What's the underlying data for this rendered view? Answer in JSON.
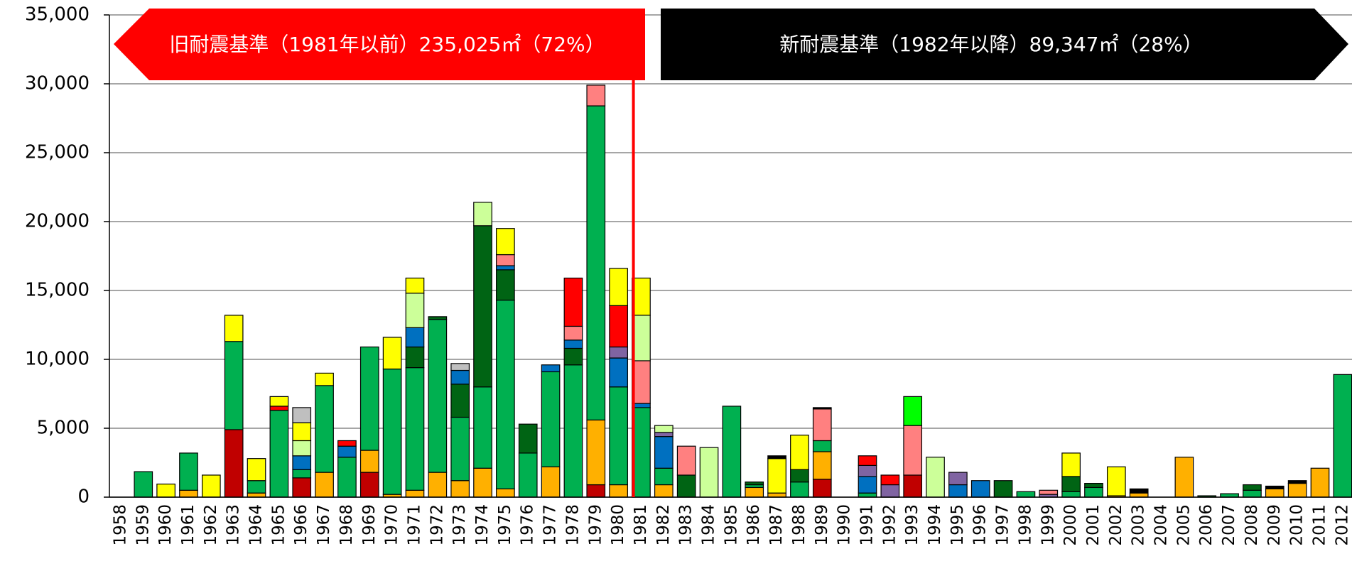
{
  "chart_data": {
    "type": "stacked_bar",
    "categories": [
      "1958",
      "1959",
      "1960",
      "1961",
      "1962",
      "1963",
      "1964",
      "1965",
      "1966",
      "1967",
      "1968",
      "1969",
      "1970",
      "1971",
      "1972",
      "1973",
      "1974",
      "1975",
      "1976",
      "1977",
      "1978",
      "1979",
      "1980",
      "1981",
      "1982",
      "1983",
      "1984",
      "1985",
      "1986",
      "1987",
      "1988",
      "1989",
      "1990",
      "1991",
      "1992",
      "1993",
      "1994",
      "1995",
      "1996",
      "1997",
      "1998",
      "1999",
      "2000",
      "2001",
      "2002",
      "2003",
      "2004",
      "2005",
      "2006",
      "2007",
      "2008",
      "2009",
      "2010",
      "2011",
      "2012"
    ],
    "series": [
      {
        "color": "#c00000",
        "values": [
          0,
          0,
          0,
          0,
          0,
          4900,
          0,
          0,
          1400,
          0,
          0,
          1800,
          0,
          0,
          0,
          0,
          0,
          0,
          0,
          0,
          0,
          900,
          0,
          0,
          0,
          0,
          0,
          0,
          0,
          0,
          0,
          1300,
          0,
          0,
          0,
          1600,
          0,
          0,
          0,
          0,
          0,
          0,
          0,
          0,
          0,
          0,
          0,
          0,
          0,
          0,
          0,
          0,
          0,
          0,
          0
        ]
      },
      {
        "color": "#ffb000",
        "values": [
          0,
          0,
          0,
          500,
          0,
          0,
          300,
          0,
          0,
          1800,
          0,
          1600,
          200,
          500,
          1800,
          1200,
          2100,
          600,
          0,
          2200,
          0,
          4700,
          900,
          0,
          900,
          0,
          0,
          0,
          700,
          300,
          0,
          2000,
          0,
          0,
          0,
          0,
          0,
          0,
          0,
          0,
          0,
          0,
          0,
          0,
          100,
          300,
          0,
          2900,
          0,
          0,
          0,
          600,
          1000,
          2100,
          0
        ]
      },
      {
        "color": "#00b050",
        "values": [
          0,
          1850,
          0,
          2700,
          0,
          6400,
          900,
          6300,
          600,
          6300,
          2900,
          7500,
          9100,
          8900,
          11100,
          4600,
          5900,
          13700,
          3200,
          6900,
          9600,
          22800,
          7100,
          6500,
          1200,
          0,
          0,
          6600,
          200,
          0,
          1100,
          800,
          0,
          300,
          0,
          0,
          0,
          0,
          0,
          0,
          400,
          0,
          400,
          700,
          0,
          0,
          0,
          0,
          0,
          250,
          500,
          0,
          0,
          0,
          8900
        ]
      },
      {
        "color": "#006414",
        "values": [
          0,
          0,
          0,
          0,
          0,
          0,
          0,
          0,
          0,
          0,
          0,
          0,
          0,
          1500,
          200,
          2400,
          11700,
          2200,
          2100,
          0,
          1200,
          0,
          0,
          0,
          0,
          1600,
          0,
          0,
          200,
          0,
          900,
          0,
          0,
          0,
          0,
          0,
          0,
          0,
          0,
          1200,
          0,
          0,
          1100,
          300,
          0,
          0,
          0,
          0,
          100,
          0,
          400,
          0,
          0,
          0,
          0
        ]
      },
      {
        "color": "#0070c0",
        "values": [
          0,
          0,
          0,
          0,
          0,
          0,
          0,
          0,
          1000,
          0,
          800,
          0,
          0,
          1400,
          0,
          1000,
          0,
          300,
          0,
          500,
          600,
          0,
          2100,
          300,
          2300,
          0,
          0,
          0,
          0,
          0,
          0,
          0,
          0,
          1200,
          0,
          0,
          0,
          900,
          1200,
          0,
          0,
          0,
          0,
          0,
          0,
          0,
          0,
          0,
          0,
          0,
          0,
          0,
          0,
          0,
          0
        ]
      },
      {
        "color": "#8064a2",
        "values": [
          0,
          0,
          0,
          0,
          0,
          0,
          0,
          0,
          0,
          0,
          0,
          0,
          0,
          0,
          0,
          0,
          0,
          0,
          0,
          0,
          0,
          0,
          800,
          0,
          300,
          0,
          0,
          0,
          0,
          0,
          0,
          0,
          0,
          800,
          900,
          0,
          0,
          900,
          0,
          0,
          0,
          200,
          0,
          0,
          0,
          0,
          0,
          0,
          0,
          0,
          0,
          0,
          0,
          0,
          0
        ]
      },
      {
        "color": "#ff8080",
        "values": [
          0,
          0,
          0,
          0,
          0,
          0,
          0,
          0,
          0,
          0,
          0,
          0,
          0,
          0,
          0,
          0,
          0,
          800,
          0,
          0,
          1000,
          1500,
          0,
          3100,
          0,
          2100,
          0,
          0,
          0,
          0,
          0,
          2300,
          0,
          0,
          0,
          3600,
          0,
          0,
          0,
          0,
          0,
          300,
          0,
          0,
          0,
          0,
          0,
          0,
          0,
          0,
          0,
          0,
          0,
          0,
          0
        ]
      },
      {
        "color": "#ff0000",
        "values": [
          0,
          0,
          0,
          0,
          0,
          0,
          0,
          300,
          0,
          0,
          400,
          0,
          0,
          0,
          0,
          0,
          0,
          0,
          0,
          0,
          3500,
          0,
          3000,
          0,
          0,
          0,
          0,
          0,
          0,
          0,
          0,
          0,
          0,
          700,
          700,
          0,
          0,
          0,
          0,
          0,
          0,
          0,
          0,
          0,
          0,
          0,
          0,
          0,
          0,
          0,
          0,
          0,
          0,
          0,
          0
        ]
      },
      {
        "color": "#ccff99",
        "values": [
          0,
          0,
          0,
          0,
          0,
          0,
          0,
          0,
          1100,
          0,
          0,
          0,
          0,
          2500,
          0,
          0,
          1700,
          0,
          0,
          0,
          0,
          0,
          0,
          3300,
          500,
          0,
          3600,
          0,
          0,
          0,
          0,
          0,
          0,
          0,
          0,
          0,
          2900,
          0,
          0,
          0,
          0,
          0,
          0,
          0,
          0,
          0,
          0,
          0,
          0,
          0,
          0,
          0,
          0,
          0,
          0
        ]
      },
      {
        "color": "#00ff00",
        "values": [
          0,
          0,
          0,
          0,
          0,
          0,
          0,
          0,
          0,
          0,
          0,
          0,
          0,
          0,
          0,
          0,
          0,
          0,
          0,
          0,
          0,
          0,
          0,
          0,
          0,
          0,
          0,
          0,
          0,
          0,
          0,
          0,
          0,
          0,
          0,
          2100,
          0,
          0,
          0,
          0,
          0,
          0,
          0,
          0,
          0,
          0,
          0,
          0,
          0,
          0,
          0,
          0,
          0,
          0,
          0
        ]
      },
      {
        "color": "#ffff00",
        "values": [
          0,
          0,
          950,
          0,
          1600,
          1900,
          1600,
          700,
          1300,
          900,
          0,
          0,
          2300,
          1100,
          0,
          0,
          0,
          1900,
          0,
          0,
          0,
          0,
          2700,
          2700,
          0,
          0,
          0,
          0,
          0,
          2500,
          2500,
          0,
          0,
          0,
          0,
          0,
          0,
          0,
          0,
          0,
          0,
          0,
          1700,
          0,
          2100,
          0,
          0,
          0,
          0,
          0,
          0,
          0,
          0,
          0,
          0
        ]
      },
      {
        "color": "#bfbfbf",
        "values": [
          0,
          0,
          0,
          0,
          0,
          0,
          0,
          0,
          1100,
          0,
          0,
          0,
          0,
          0,
          0,
          500,
          0,
          0,
          0,
          0,
          0,
          0,
          0,
          0,
          0,
          0,
          0,
          0,
          0,
          0,
          0,
          0,
          0,
          0,
          0,
          0,
          0,
          0,
          0,
          0,
          0,
          0,
          0,
          0,
          0,
          0,
          0,
          0,
          0,
          0,
          0,
          0,
          0,
          0,
          0
        ]
      },
      {
        "color": "#000000",
        "values": [
          0,
          0,
          0,
          0,
          0,
          0,
          0,
          0,
          0,
          0,
          0,
          0,
          0,
          0,
          0,
          0,
          0,
          0,
          0,
          0,
          0,
          0,
          0,
          0,
          0,
          0,
          0,
          0,
          0,
          200,
          0,
          100,
          0,
          0,
          0,
          0,
          0,
          0,
          0,
          0,
          0,
          0,
          0,
          0,
          0,
          300,
          0,
          0,
          0,
          0,
          0,
          200,
          200,
          0,
          0
        ]
      }
    ],
    "ylim": [
      0,
      35000
    ],
    "yticks": [
      0,
      {
        "value": 5000,
        "label": "5,000"
      },
      {
        "value": 10000,
        "label": "10,000"
      },
      {
        "value": 15000,
        "label": "15,000"
      },
      {
        "value": 20000,
        "label": "20,000"
      },
      {
        "value": 25000,
        "label": "25,000"
      },
      {
        "value": 30000,
        "label": "30,000"
      },
      {
        "value": 35000,
        "label": "35,000"
      }
    ],
    "grid": true,
    "annotations": [
      "旧耐震基準（1981年以前）235,025㎡（72%）",
      "新耐震基準（1982年以降）89,347㎡（28%）"
    ]
  }
}
